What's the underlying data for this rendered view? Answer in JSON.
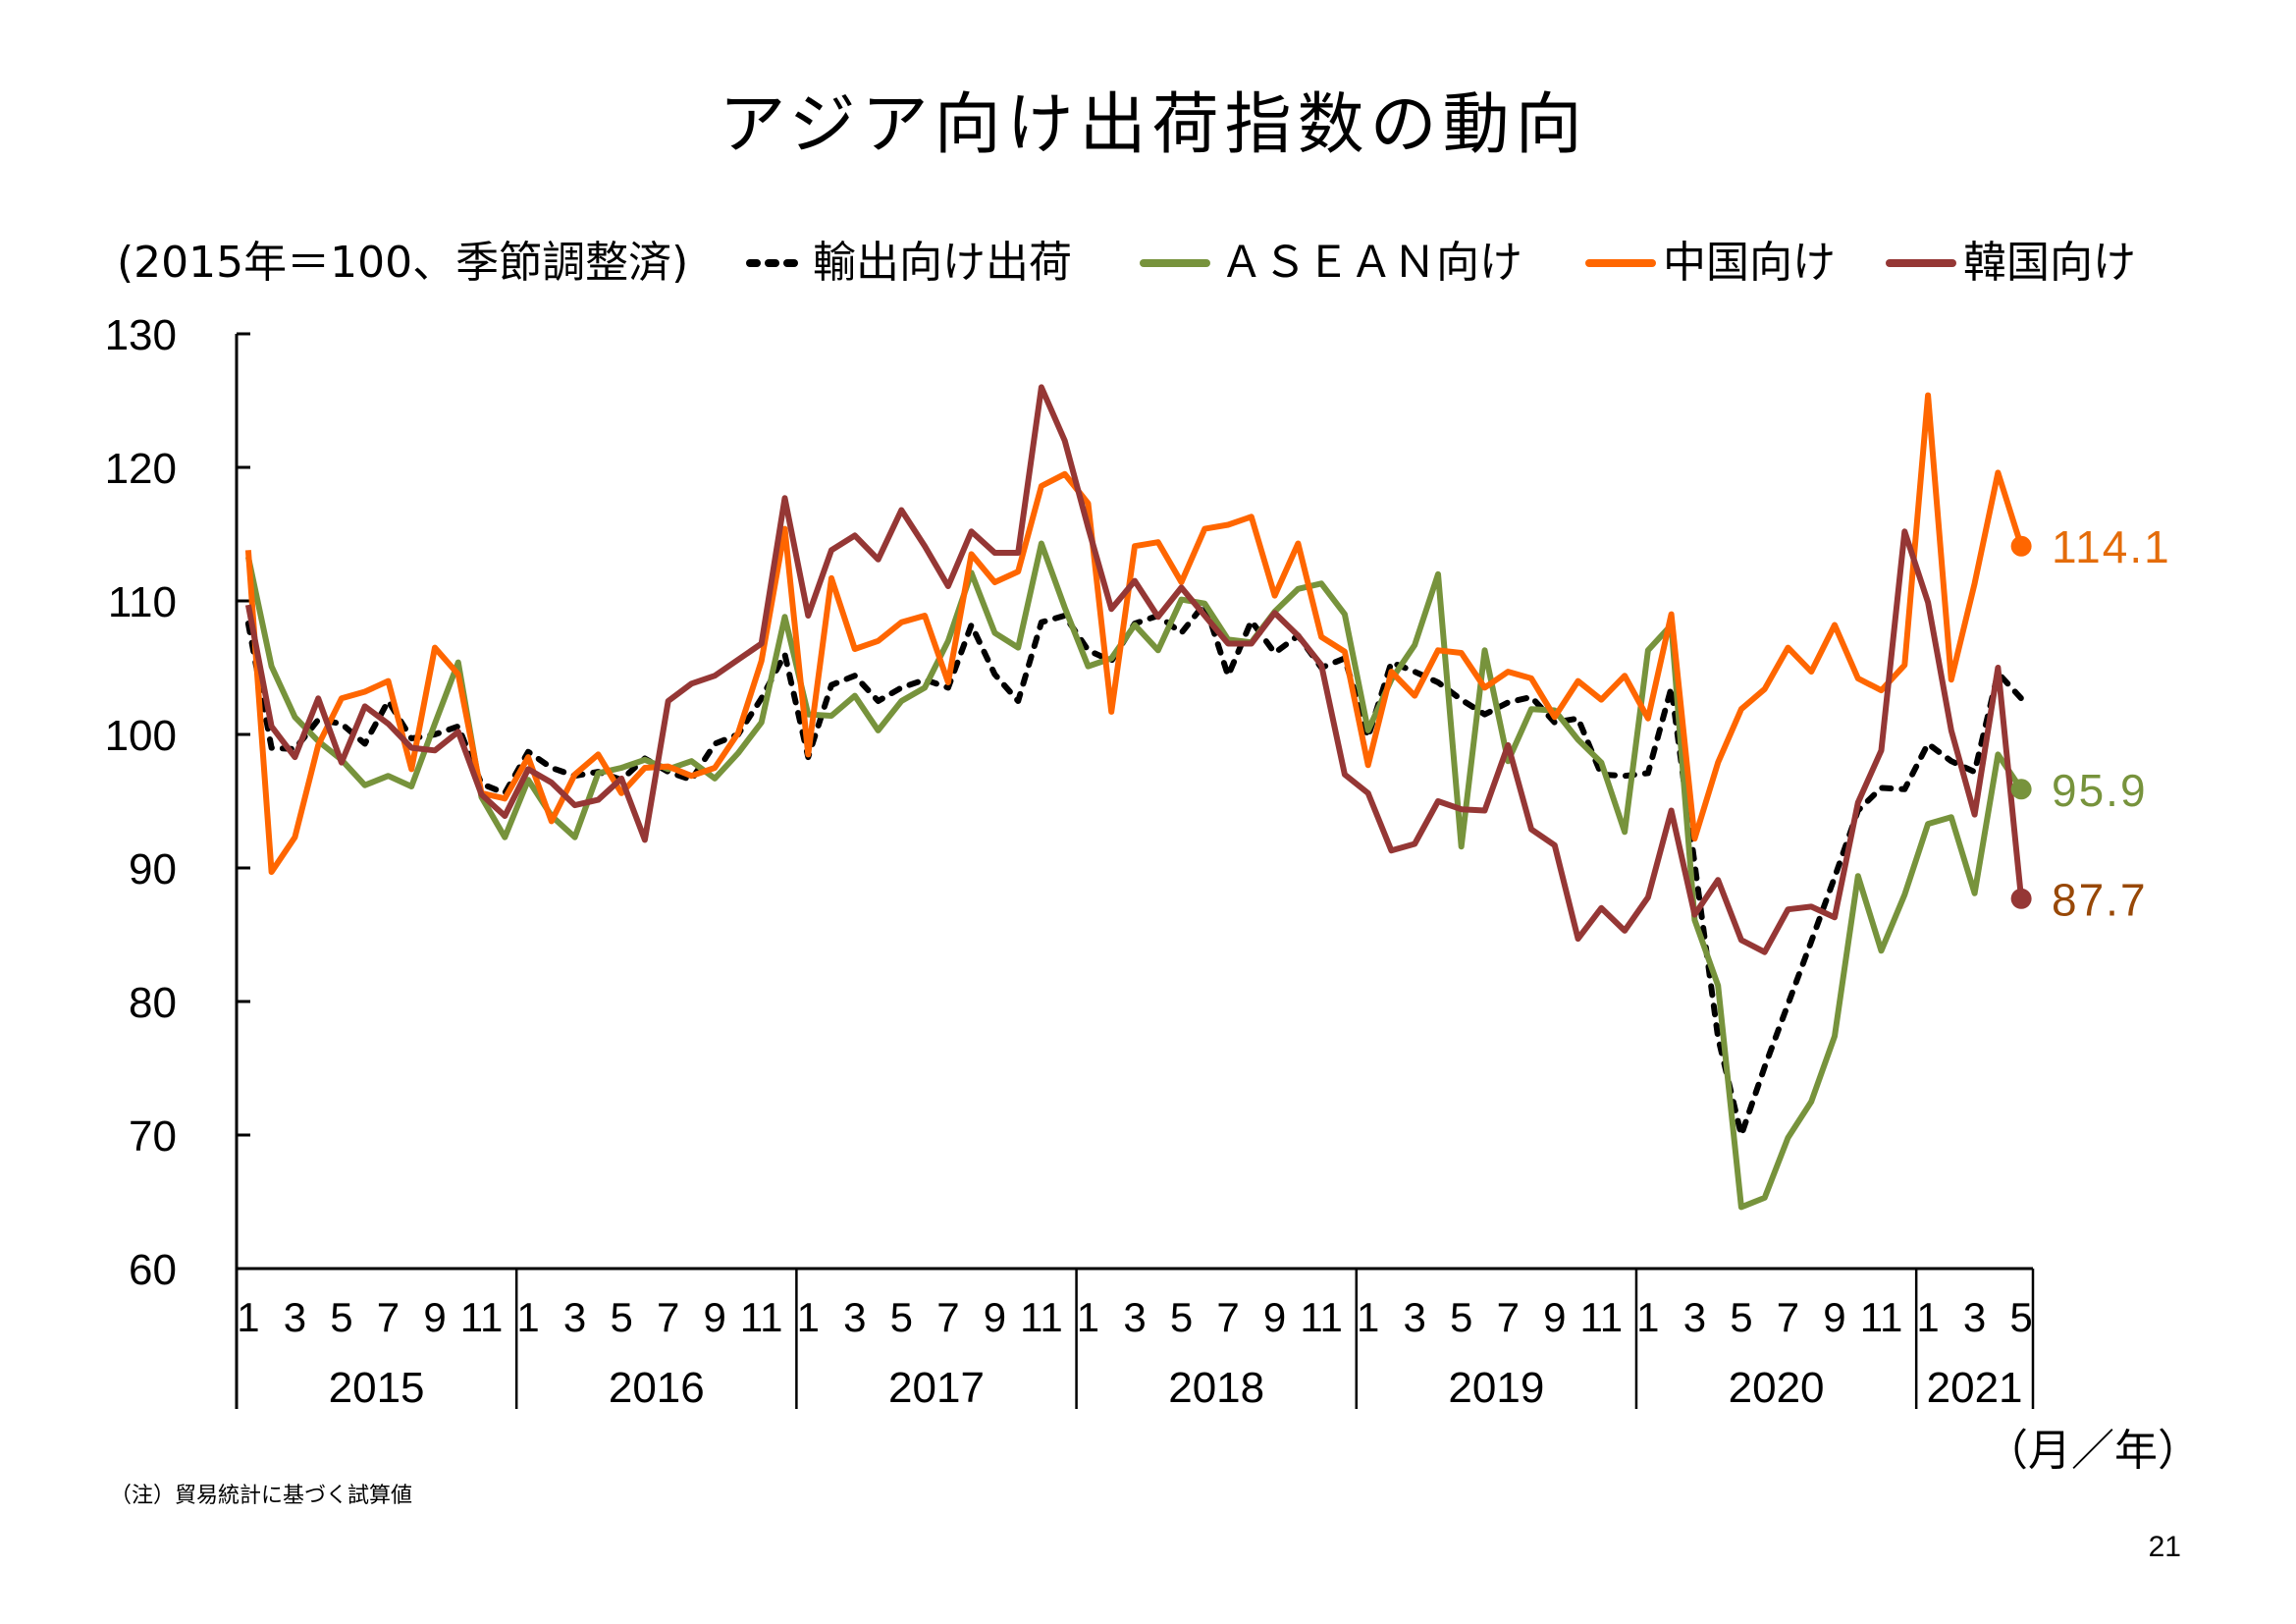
{
  "page": {
    "title": "アジア向け出荷指数の動向",
    "footnote": "（注）貿易統計に基づく試算値",
    "page_number": "21"
  },
  "chart_data": {
    "type": "line",
    "title": "アジア向け出荷指数の動向",
    "ylabel": "(2015年＝100、季節調整済)",
    "xlabel": "（月／年）",
    "ylim": [
      60,
      130
    ],
    "yticks": [
      60,
      70,
      80,
      90,
      100,
      110,
      120,
      130
    ],
    "grid": false,
    "legend_position": "top",
    "x": [
      "2015/1",
      "2015/2",
      "2015/3",
      "2015/4",
      "2015/5",
      "2015/6",
      "2015/7",
      "2015/8",
      "2015/9",
      "2015/10",
      "2015/11",
      "2015/12",
      "2016/1",
      "2016/2",
      "2016/3",
      "2016/4",
      "2016/5",
      "2016/6",
      "2016/7",
      "2016/8",
      "2016/9",
      "2016/10",
      "2016/11",
      "2016/12",
      "2017/1",
      "2017/2",
      "2017/3",
      "2017/4",
      "2017/5",
      "2017/6",
      "2017/7",
      "2017/8",
      "2017/9",
      "2017/10",
      "2017/11",
      "2017/12",
      "2018/1",
      "2018/2",
      "2018/3",
      "2018/4",
      "2018/5",
      "2018/6",
      "2018/7",
      "2018/8",
      "2018/9",
      "2018/10",
      "2018/11",
      "2018/12",
      "2019/1",
      "2019/2",
      "2019/3",
      "2019/4",
      "2019/5",
      "2019/6",
      "2019/7",
      "2019/8",
      "2019/9",
      "2019/10",
      "2019/11",
      "2019/12",
      "2020/1",
      "2020/2",
      "2020/3",
      "2020/4",
      "2020/5",
      "2020/6",
      "2020/7",
      "2020/8",
      "2020/9",
      "2020/10",
      "2020/11",
      "2020/12",
      "2021/1",
      "2021/2",
      "2021/3",
      "2021/4",
      "2021/5"
    ],
    "year_groups": [
      {
        "year": "2015",
        "month_labels": [
          "1",
          "3",
          "5",
          "7",
          "9",
          "11"
        ]
      },
      {
        "year": "2016",
        "month_labels": [
          "1",
          "3",
          "5",
          "7",
          "9",
          "11"
        ]
      },
      {
        "year": "2017",
        "month_labels": [
          "1",
          "3",
          "5",
          "7",
          "9",
          "11"
        ]
      },
      {
        "year": "2018",
        "month_labels": [
          "1",
          "3",
          "5",
          "7",
          "9",
          "11"
        ]
      },
      {
        "year": "2019",
        "month_labels": [
          "1",
          "3",
          "5",
          "7",
          "9",
          "11"
        ]
      },
      {
        "year": "2020",
        "month_labels": [
          "1",
          "3",
          "5",
          "7",
          "9",
          "11"
        ]
      },
      {
        "year": "2021",
        "month_labels": [
          "1",
          "3",
          "5"
        ]
      }
    ],
    "series": [
      {
        "name": "輸出向け出荷",
        "color": "#000000",
        "style": "dashed",
        "values": [
          108.3,
          99.0,
          98.9,
          101.1,
          100.8,
          99.3,
          102.5,
          99.7,
          100.0,
          100.6,
          96.3,
          95.6,
          98.7,
          97.5,
          96.9,
          97.2,
          96.6,
          98.2,
          97.2,
          96.6,
          99.3,
          100.0,
          102.7,
          106.0,
          98.3,
          103.7,
          104.4,
          102.5,
          103.5,
          104.1,
          103.5,
          108.2,
          104.5,
          102.5,
          108.4,
          108.9,
          106.3,
          105.5,
          108.3,
          108.9,
          107.6,
          109.8,
          104.4,
          108.5,
          106.1,
          107.4,
          105.0,
          105.7,
          99.8,
          105.4,
          104.7,
          103.9,
          102.6,
          101.5,
          102.4,
          102.8,
          100.9,
          101.2,
          97.0,
          96.9,
          97.1,
          103.5,
          90.3,
          77.3,
          70.0,
          75.1,
          79.8,
          84.5,
          89.3,
          94.3,
          96.0,
          95.9,
          99.3,
          98.0,
          97.2,
          104.6,
          102.7
        ]
      },
      {
        "name": "ＡＳＥＡＮ向け",
        "color": "#77933C",
        "style": "solid",
        "values": [
          113.3,
          105.1,
          101.3,
          99.5,
          98.1,
          96.2,
          96.9,
          96.1,
          100.8,
          105.4,
          95.3,
          92.3,
          96.6,
          93.9,
          92.3,
          97.1,
          97.5,
          98.1,
          97.4,
          98.0,
          96.7,
          98.6,
          100.9,
          108.8,
          101.5,
          101.4,
          102.9,
          100.3,
          102.5,
          103.5,
          107.0,
          112.1,
          107.6,
          106.5,
          114.3,
          109.5,
          105.1,
          105.7,
          108.2,
          106.3,
          110.1,
          109.8,
          107.1,
          106.9,
          109.2,
          110.9,
          111.3,
          109.0,
          100.3,
          104.1,
          106.7,
          112.0,
          91.6,
          106.3,
          98.0,
          101.9,
          101.8,
          99.6,
          97.9,
          92.7,
          106.3,
          108.2,
          86.1,
          81.2,
          64.6,
          65.3,
          69.8,
          72.5,
          77.4,
          89.4,
          83.8,
          88.0,
          93.3,
          93.8,
          88.1,
          98.5,
          95.9
        ],
        "end_label": "95.9",
        "label_color": "#77933C"
      },
      {
        "name": "中国向け",
        "color": "#FF6600",
        "style": "solid",
        "values": [
          113.8,
          89.7,
          92.3,
          99.2,
          102.7,
          103.2,
          104.0,
          97.4,
          106.5,
          104.5,
          95.6,
          95.2,
          98.3,
          93.5,
          97.0,
          98.5,
          95.6,
          97.5,
          97.6,
          96.9,
          97.5,
          100.1,
          105.5,
          115.4,
          98.5,
          111.7,
          106.4,
          107.0,
          108.4,
          108.9,
          103.9,
          113.5,
          111.4,
          112.2,
          118.6,
          119.5,
          117.3,
          101.7,
          114.1,
          114.4,
          111.4,
          115.4,
          115.7,
          116.3,
          110.4,
          114.3,
          107.3,
          106.2,
          97.7,
          104.7,
          102.9,
          106.3,
          106.1,
          103.5,
          104.7,
          104.2,
          101.3,
          104.0,
          102.6,
          104.4,
          101.2,
          109.0,
          92.2,
          97.9,
          101.9,
          103.4,
          106.5,
          104.7,
          108.2,
          104.2,
          103.3,
          105.2,
          125.4,
          104.1,
          111.3,
          119.6,
          114.1
        ],
        "end_label": "114.1",
        "label_color": "#E46C0A"
      },
      {
        "name": "韓国向け",
        "color": "#953735",
        "style": "solid",
        "values": [
          109.7,
          100.6,
          98.3,
          102.7,
          97.9,
          102.1,
          100.8,
          99.0,
          98.8,
          100.2,
          95.5,
          93.9,
          97.4,
          96.4,
          94.7,
          95.1,
          96.7,
          92.1,
          102.5,
          103.8,
          104.4,
          105.6,
          106.8,
          117.7,
          108.9,
          113.8,
          114.9,
          113.1,
          116.8,
          114.1,
          111.1,
          115.2,
          113.6,
          113.6,
          126.0,
          122.0,
          115.5,
          109.4,
          111.5,
          108.8,
          111.0,
          108.9,
          106.8,
          106.8,
          109.1,
          107.4,
          105.2,
          97.0,
          95.6,
          91.3,
          91.8,
          95.0,
          94.4,
          94.3,
          99.2,
          92.9,
          91.7,
          84.7,
          87.0,
          85.3,
          87.8,
          94.3,
          86.5,
          89.1,
          84.6,
          83.7,
          86.9,
          87.1,
          86.3,
          94.9,
          98.8,
          115.2,
          109.9,
          100.3,
          94.0,
          105.0,
          87.7
        ],
        "end_label": "87.7",
        "label_color": "#984807"
      }
    ]
  }
}
